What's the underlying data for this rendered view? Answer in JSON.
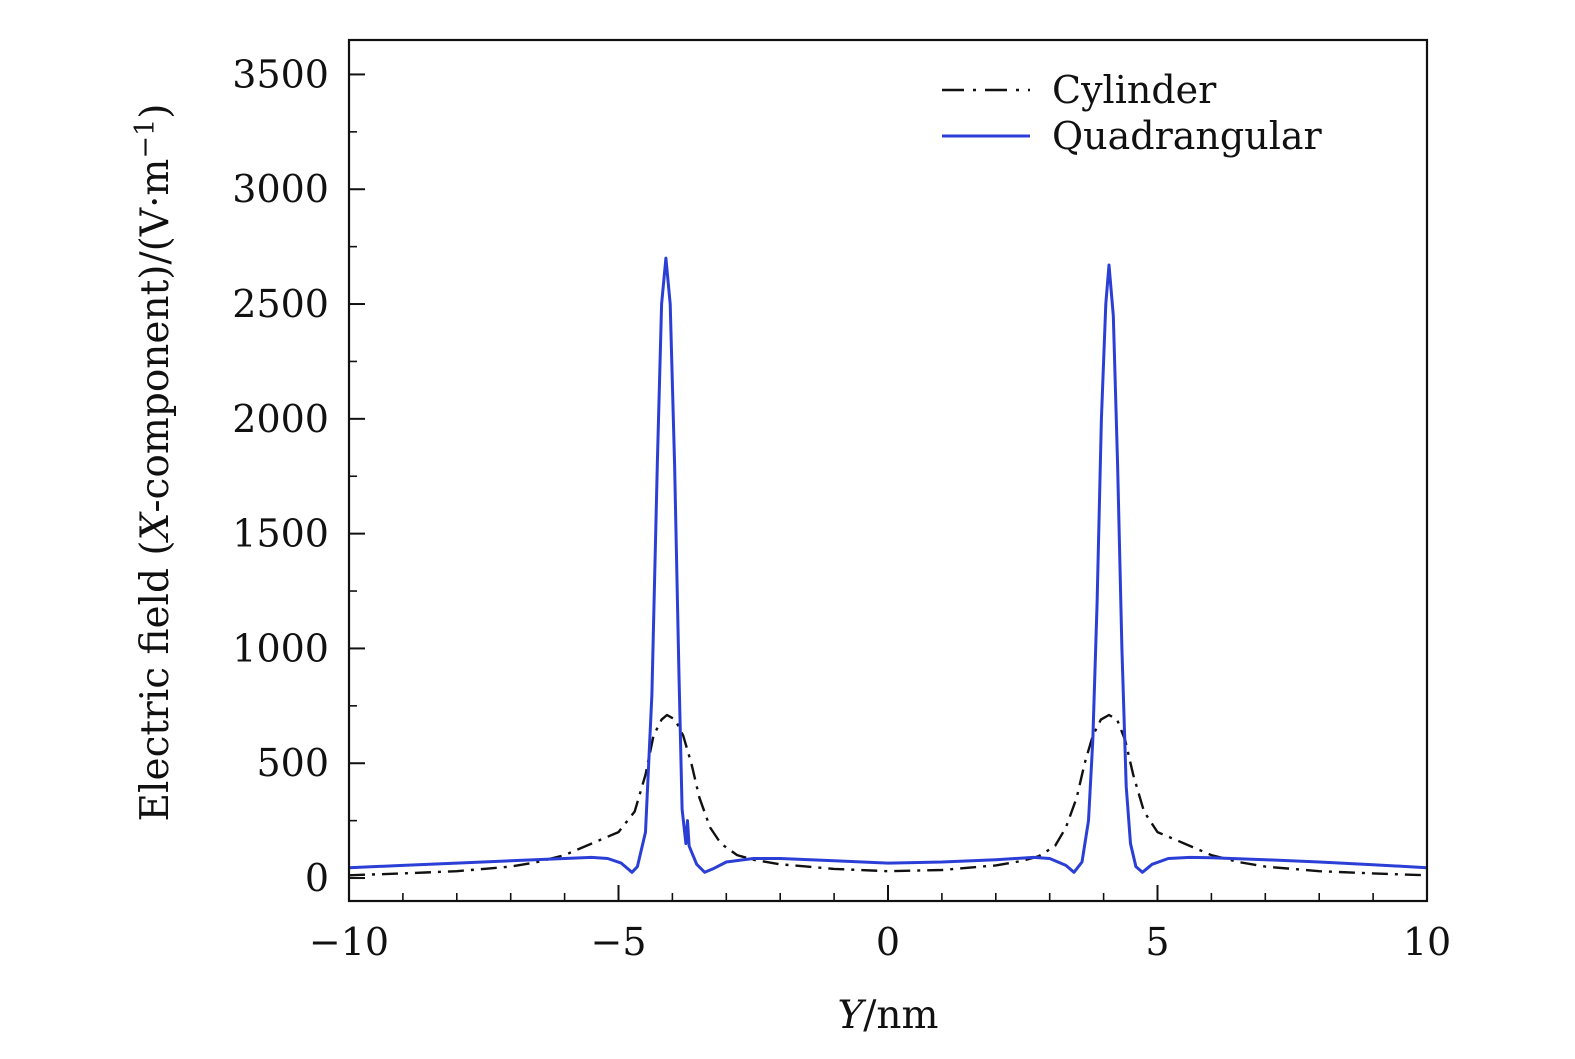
{
  "chart_data": {
    "type": "line",
    "title": "",
    "xlabel_var": "Y",
    "xlabel_unit": "/nm",
    "ylabel_prefix": "Electric field (",
    "ylabel_var": "X",
    "ylabel_mid": "-component)/(V·m",
    "ylabel_exp": "−1",
    "ylabel_suffix": ")",
    "xlim": [
      -10,
      10
    ],
    "ylim": [
      -100,
      3650
    ],
    "x_ticks": [
      -10,
      -5,
      0,
      5,
      10
    ],
    "x_tick_labels": [
      "−10",
      "−5",
      "0",
      "5",
      "10"
    ],
    "y_ticks": [
      0,
      500,
      1000,
      1500,
      2000,
      2500,
      3000,
      3500
    ],
    "y_tick_labels": [
      "0",
      "500",
      "1000",
      "1500",
      "2000",
      "2500",
      "3000",
      "3500"
    ],
    "x_minor_step": 1,
    "y_minor_step": 250,
    "legend_position": "top-right",
    "grid": false,
    "series": [
      {
        "name": "Cylinder",
        "color": "#111111",
        "style": "dash-dot",
        "points": [
          [
            -10,
            12
          ],
          [
            -9,
            20
          ],
          [
            -8,
            30
          ],
          [
            -7,
            50
          ],
          [
            -6.5,
            70
          ],
          [
            -6,
            100
          ],
          [
            -5.5,
            150
          ],
          [
            -5,
            200
          ],
          [
            -4.7,
            290
          ],
          [
            -4.5,
            450
          ],
          [
            -4.35,
            620
          ],
          [
            -4.2,
            690
          ],
          [
            -4.1,
            710
          ],
          [
            -3.95,
            690
          ],
          [
            -3.8,
            620
          ],
          [
            -3.65,
            500
          ],
          [
            -3.5,
            350
          ],
          [
            -3.3,
            220
          ],
          [
            -3.1,
            150
          ],
          [
            -2.8,
            100
          ],
          [
            -2.5,
            80
          ],
          [
            -2,
            60
          ],
          [
            -1,
            40
          ],
          [
            0,
            30
          ],
          [
            1,
            35
          ],
          [
            2,
            55
          ],
          [
            2.5,
            75
          ],
          [
            2.8,
            95
          ],
          [
            3.1,
            140
          ],
          [
            3.3,
            220
          ],
          [
            3.5,
            350
          ],
          [
            3.65,
            500
          ],
          [
            3.8,
            620
          ],
          [
            3.95,
            690
          ],
          [
            4.1,
            710
          ],
          [
            4.25,
            690
          ],
          [
            4.4,
            600
          ],
          [
            4.55,
            450
          ],
          [
            4.75,
            290
          ],
          [
            5,
            200
          ],
          [
            5.5,
            150
          ],
          [
            6,
            100
          ],
          [
            6.5,
            70
          ],
          [
            7,
            50
          ],
          [
            8,
            30
          ],
          [
            9,
            20
          ],
          [
            10,
            12
          ]
        ]
      },
      {
        "name": "Quadrangular",
        "color": "#2b3fd6",
        "style": "solid",
        "points": [
          [
            -10,
            45
          ],
          [
            -9,
            55
          ],
          [
            -8,
            65
          ],
          [
            -7,
            75
          ],
          [
            -6,
            85
          ],
          [
            -5.5,
            90
          ],
          [
            -5.2,
            85
          ],
          [
            -4.95,
            65
          ],
          [
            -4.75,
            25
          ],
          [
            -4.65,
            50
          ],
          [
            -4.5,
            200
          ],
          [
            -4.38,
            800
          ],
          [
            -4.28,
            1800
          ],
          [
            -4.2,
            2500
          ],
          [
            -4.12,
            2700
          ],
          [
            -4.04,
            2500
          ],
          [
            -3.96,
            1800
          ],
          [
            -3.88,
            900
          ],
          [
            -3.82,
            300
          ],
          [
            -3.75,
            150
          ],
          [
            -3.72,
            250
          ],
          [
            -3.69,
            140
          ],
          [
            -3.55,
            60
          ],
          [
            -3.4,
            25
          ],
          [
            -3.25,
            40
          ],
          [
            -3.0,
            70
          ],
          [
            -2.5,
            85
          ],
          [
            -2,
            85
          ],
          [
            -1,
            75
          ],
          [
            0,
            65
          ],
          [
            1,
            70
          ],
          [
            2,
            80
          ],
          [
            2.7,
            90
          ],
          [
            3.0,
            85
          ],
          [
            3.3,
            55
          ],
          [
            3.45,
            25
          ],
          [
            3.6,
            70
          ],
          [
            3.72,
            250
          ],
          [
            3.8,
            600
          ],
          [
            3.88,
            1200
          ],
          [
            3.96,
            2000
          ],
          [
            4.04,
            2500
          ],
          [
            4.1,
            2670
          ],
          [
            4.18,
            2450
          ],
          [
            4.26,
            1800
          ],
          [
            4.34,
            1000
          ],
          [
            4.42,
            400
          ],
          [
            4.5,
            150
          ],
          [
            4.6,
            50
          ],
          [
            4.72,
            25
          ],
          [
            4.9,
            60
          ],
          [
            5.2,
            85
          ],
          [
            5.6,
            90
          ],
          [
            6,
            88
          ],
          [
            7,
            80
          ],
          [
            8,
            70
          ],
          [
            9,
            58
          ],
          [
            10,
            45
          ]
        ]
      }
    ]
  }
}
